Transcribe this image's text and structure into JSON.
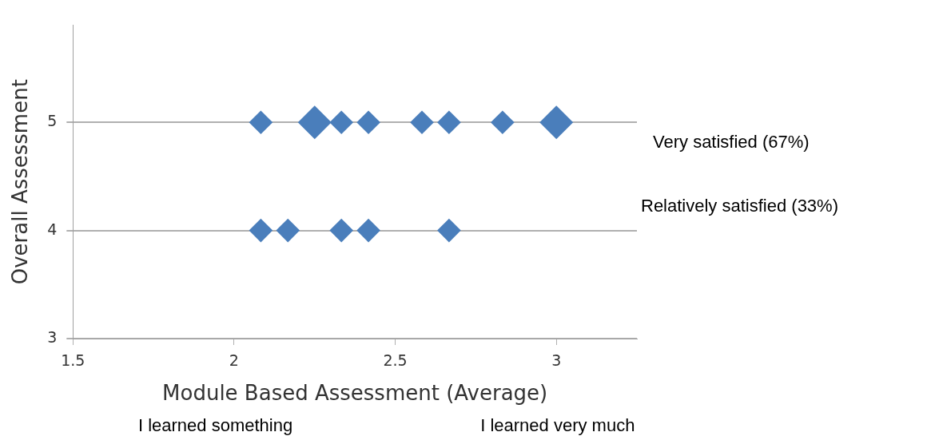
{
  "chart_data": {
    "type": "bubble",
    "xlabel": "Module Based Assessment (Average)",
    "ylabel": "Overall Assessment",
    "series": [
      {
        "color": "#4a7ebb",
        "x": [
          2.083,
          2.25,
          2.333,
          2.417,
          2.583,
          2.667,
          2.833,
          3.0,
          2.083,
          2.167,
          2.333,
          2.417,
          2.667
        ],
        "values": [
          5,
          5,
          5,
          5,
          5,
          5,
          5,
          5,
          4,
          4,
          4,
          4,
          4
        ],
        "sizes": [
          0.5,
          1,
          0.5,
          0.5,
          0.5,
          0.5,
          0.5,
          1,
          0.5,
          0.5,
          0.5,
          0.5,
          0.5
        ]
      }
    ],
    "marker": "diamond",
    "xlim": [
      1.5,
      3.25
    ],
    "xticks": [
      1.5,
      2,
      2.5,
      3
    ],
    "ylim": [
      3,
      5.9
    ],
    "yticks": [
      3,
      4,
      5
    ],
    "grid": "y",
    "legend": false,
    "annotations": [
      "Very satisfied (67%)",
      "Relatively satisfied (33%)",
      "I learned something",
      "I learned very much"
    ]
  }
}
